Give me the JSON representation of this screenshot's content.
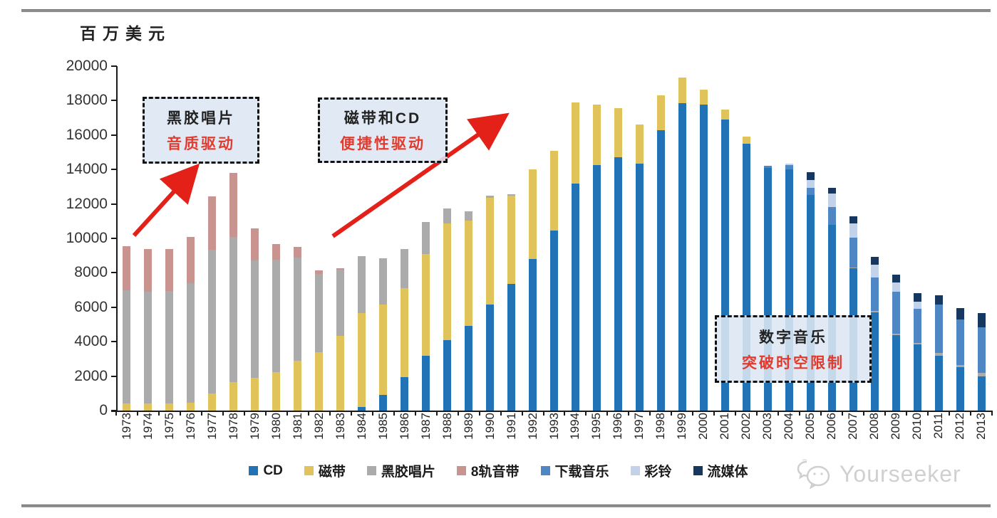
{
  "page": {
    "unit_label": "百万美元",
    "watermark": "Yourseeker"
  },
  "annotations": [
    {
      "line1": "黑胶唱片",
      "line2": "音质驱动"
    },
    {
      "line1": "磁带和CD",
      "line2": "便捷性驱动"
    },
    {
      "line1": "数字音乐",
      "line2": "突破时空限制"
    }
  ],
  "arrow_color": "#e32119",
  "chart_data": {
    "type": "bar",
    "stacked": true,
    "title": "",
    "xlabel": "",
    "ylabel": "百万美元",
    "ylim": [
      0,
      20000
    ],
    "ytick_step": 2000,
    "grid": false,
    "legend_position": "bottom",
    "categories": [
      "1973",
      "1974",
      "1975",
      "1976",
      "1977",
      "1978",
      "1979",
      "1980",
      "1981",
      "1982",
      "1983",
      "1984",
      "1985",
      "1986",
      "1987",
      "1988",
      "1989",
      "1990",
      "1991",
      "1992",
      "1993",
      "1994",
      "1995",
      "1996",
      "1997",
      "1998",
      "1999",
      "2000",
      "2001",
      "2002",
      "2003",
      "2004",
      "2005",
      "2006",
      "2007",
      "2008",
      "2009",
      "2010",
      "2011",
      "2012",
      "2013"
    ],
    "series": [
      {
        "name": "CD",
        "color": "#2273b5",
        "values": [
          0,
          0,
          0,
          0,
          0,
          0,
          0,
          0,
          0,
          0,
          0,
          200,
          900,
          1950,
          3200,
          4100,
          4900,
          6150,
          7350,
          8800,
          10450,
          13200,
          14250,
          14700,
          14350,
          16300,
          17850,
          17750,
          16900,
          15500,
          14100,
          14000,
          12500,
          10800,
          8250,
          5700,
          4400,
          3850,
          3200,
          2500,
          2000
        ]
      },
      {
        "name": "磁带",
        "color": "#e1c35b",
        "values": [
          400,
          400,
          400,
          450,
          1000,
          1650,
          1900,
          2250,
          2900,
          3400,
          4350,
          5450,
          5250,
          5150,
          5900,
          6750,
          6150,
          6200,
          5150,
          5200,
          4650,
          4700,
          3500,
          2850,
          2250,
          2000,
          1500,
          900,
          600,
          400,
          0,
          0,
          0,
          0,
          0,
          0,
          0,
          0,
          0,
          0,
          0
        ]
      },
      {
        "name": "黑胶唱片",
        "color": "#ababab",
        "values": [
          6600,
          6500,
          6550,
          6950,
          8350,
          8450,
          6800,
          6500,
          6000,
          4550,
          3850,
          3300,
          2700,
          2300,
          1850,
          900,
          500,
          150,
          50,
          0,
          0,
          0,
          0,
          0,
          0,
          0,
          0,
          0,
          0,
          0,
          0,
          0,
          0,
          0,
          50,
          70,
          60,
          60,
          150,
          150,
          200
        ]
      },
      {
        "name": "8轨音带",
        "color": "#c9938f",
        "values": [
          2550,
          2500,
          2450,
          2700,
          3100,
          3700,
          1900,
          900,
          600,
          200,
          50,
          0,
          0,
          0,
          0,
          0,
          0,
          0,
          0,
          0,
          0,
          0,
          0,
          0,
          0,
          0,
          0,
          0,
          0,
          0,
          0,
          0,
          0,
          0,
          0,
          0,
          0,
          0,
          0,
          0,
          0
        ]
      },
      {
        "name": "下载音乐",
        "color": "#4e87c3",
        "values": [
          0,
          0,
          0,
          0,
          0,
          0,
          0,
          0,
          0,
          0,
          0,
          0,
          0,
          0,
          0,
          0,
          0,
          0,
          0,
          0,
          0,
          0,
          0,
          0,
          0,
          0,
          0,
          0,
          0,
          0,
          100,
          250,
          450,
          1000,
          1750,
          1950,
          2450,
          2000,
          2800,
          2650,
          2650
        ]
      },
      {
        "name": "彩铃",
        "color": "#c1d2e9",
        "values": [
          0,
          0,
          0,
          0,
          0,
          0,
          0,
          0,
          0,
          0,
          0,
          0,
          0,
          0,
          0,
          0,
          0,
          0,
          0,
          0,
          0,
          0,
          0,
          0,
          0,
          0,
          0,
          0,
          0,
          0,
          0,
          100,
          450,
          800,
          800,
          750,
          550,
          420,
          0,
          0,
          0
        ]
      },
      {
        "name": "流媒体",
        "color": "#16375f",
        "values": [
          0,
          0,
          0,
          0,
          0,
          0,
          0,
          0,
          0,
          0,
          0,
          0,
          0,
          0,
          0,
          0,
          0,
          0,
          0,
          0,
          0,
          0,
          0,
          0,
          0,
          0,
          0,
          0,
          0,
          0,
          0,
          0,
          450,
          350,
          450,
          450,
          450,
          480,
          550,
          650,
          800
        ]
      }
    ]
  }
}
